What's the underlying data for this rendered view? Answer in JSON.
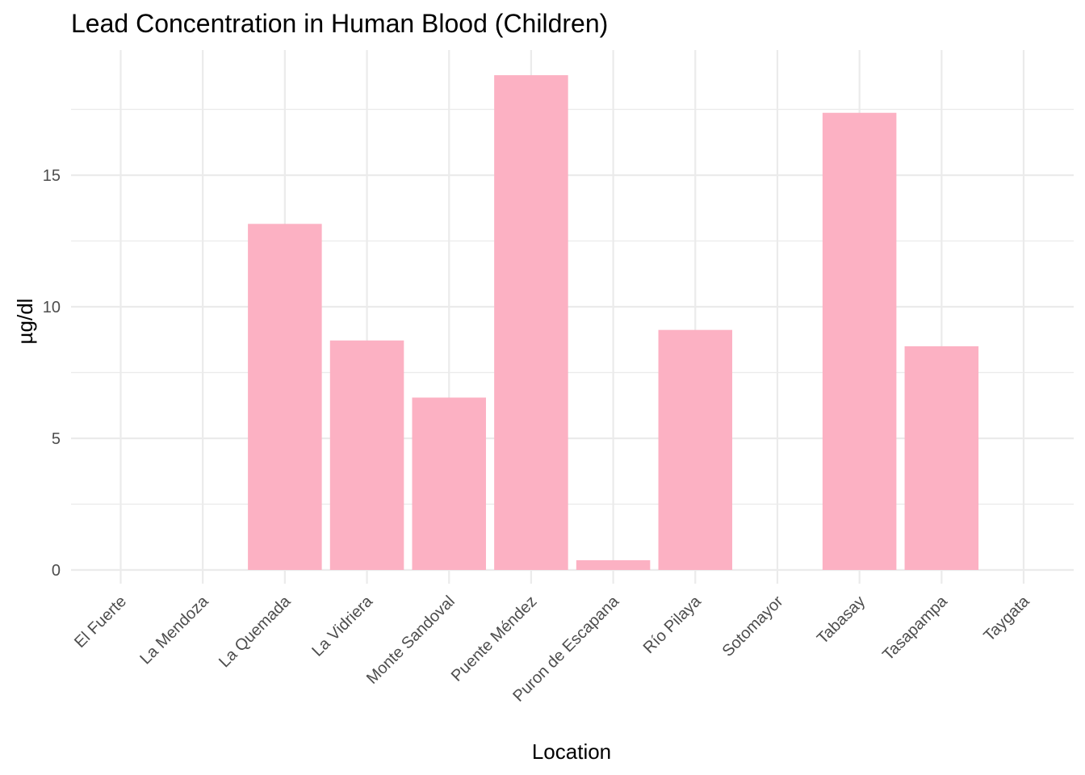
{
  "chart_data": {
    "type": "bar",
    "title": "Lead Concentration in Human Blood (Children)",
    "xlabel": "Location",
    "ylabel": "µg/dl",
    "categories": [
      "El Fuerte",
      "La Mendoza",
      "La Quemada",
      "La Vidriera",
      "Monte Sandoval",
      "Puente Méndez",
      "Puron de Escapana",
      "Río Pilaya",
      "Sotomayor",
      "Tabasay",
      "Tasapampa",
      "Taygata"
    ],
    "values": [
      0,
      0,
      13.15,
      8.72,
      6.55,
      18.8,
      0.37,
      9.12,
      0,
      17.37,
      8.5,
      0
    ],
    "ylim": [
      -0.5,
      19.7
    ],
    "yticks": [
      0,
      5,
      10,
      15
    ],
    "grid": true,
    "bar_color": "#fcb1c3",
    "grid_color": "#ebebeb"
  }
}
